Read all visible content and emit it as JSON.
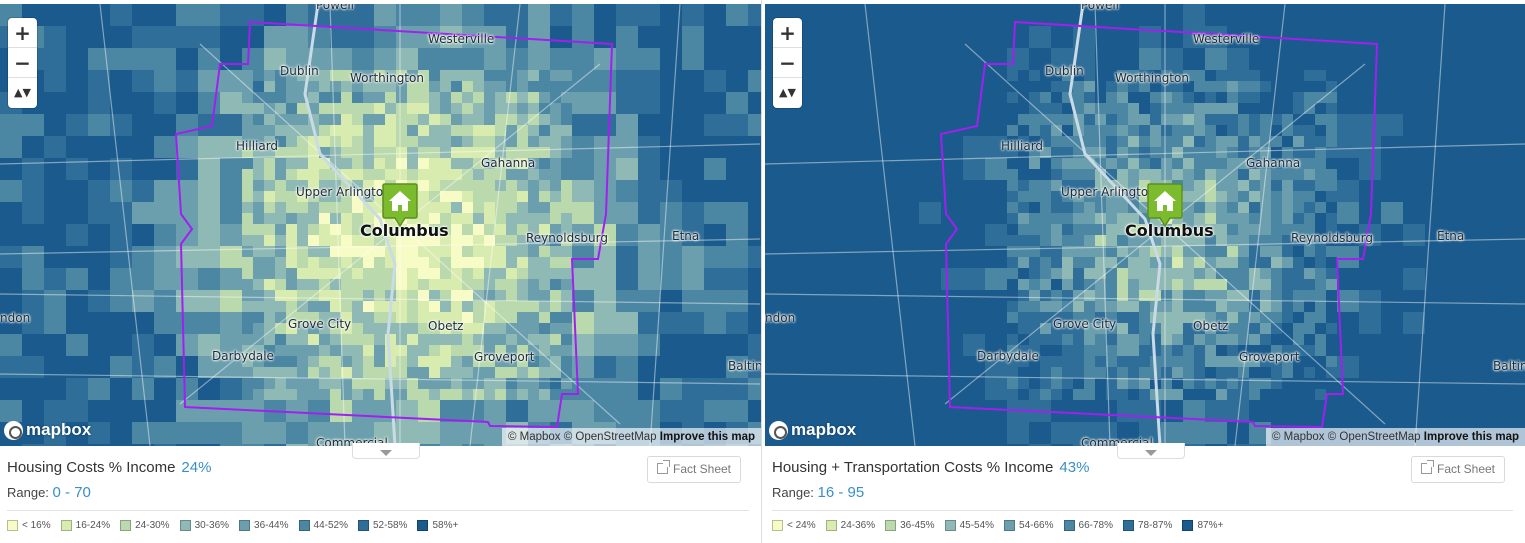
{
  "map_places": {
    "westerville": "Westerville",
    "dublin": "Dublin",
    "worthington": "Worthington",
    "hilliard": "Hilliard",
    "gahanna": "Gahanna",
    "upper_arlington": "Upper Arlingto",
    "columbus": "Columbus",
    "reynoldsburg": "Reynoldsburg",
    "etna": "Etna",
    "london": "ndon",
    "grove_city": "Grove City",
    "obetz": "Obetz",
    "darbydale": "Darbydale",
    "groveport": "Groveport",
    "baltimore": "Baltin",
    "powell": "Powell",
    "commercial": "Commercial"
  },
  "map_controls": {
    "zoom_in": "+",
    "zoom_out": "−",
    "compass": "▲▼"
  },
  "attribution": {
    "logo": "mapbox",
    "text": "© Mapbox © OpenStreetMap",
    "improve": "Improve this map"
  },
  "boundary_color": "#a020f0",
  "pin_icon": "home-pin-icon",
  "panels": [
    {
      "title": "Housing Costs % Income",
      "value": "24%",
      "range_label": "Range:",
      "range": "0 - 70",
      "fact_sheet": "Fact Sheet",
      "legend": [
        {
          "label": "< 16%",
          "color": "#f7fcc6"
        },
        {
          "label": "16-24%",
          "color": "#d9ecb0"
        },
        {
          "label": "24-30%",
          "color": "#bad9ad"
        },
        {
          "label": "30-36%",
          "color": "#8fb9b4"
        },
        {
          "label": "36-44%",
          "color": "#6c9fad"
        },
        {
          "label": "44-52%",
          "color": "#4b86a3"
        },
        {
          "label": "52-58%",
          "color": "#2f6e98"
        },
        {
          "label": "58%+",
          "color": "#1a5a8c"
        }
      ]
    },
    {
      "title": "Housing + Transportation Costs % Income",
      "value": "43%",
      "range_label": "Range:",
      "range": "16 - 95",
      "fact_sheet": "Fact Sheet",
      "legend": [
        {
          "label": "< 24%",
          "color": "#f7fcc6"
        },
        {
          "label": "24-36%",
          "color": "#d9ecb0"
        },
        {
          "label": "36-45%",
          "color": "#bad9ad"
        },
        {
          "label": "45-54%",
          "color": "#8fb9b4"
        },
        {
          "label": "54-66%",
          "color": "#6c9fad"
        },
        {
          "label": "66-78%",
          "color": "#4b86a3"
        },
        {
          "label": "78-87%",
          "color": "#2f6e98"
        },
        {
          "label": "87%+",
          "color": "#1a5a8c"
        }
      ]
    }
  ]
}
